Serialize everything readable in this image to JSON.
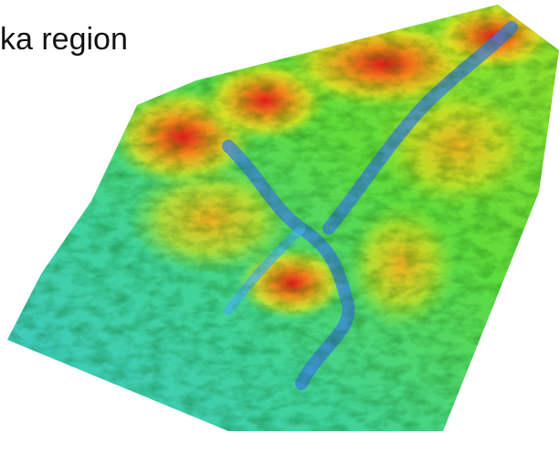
{
  "text": "ka region"
}
